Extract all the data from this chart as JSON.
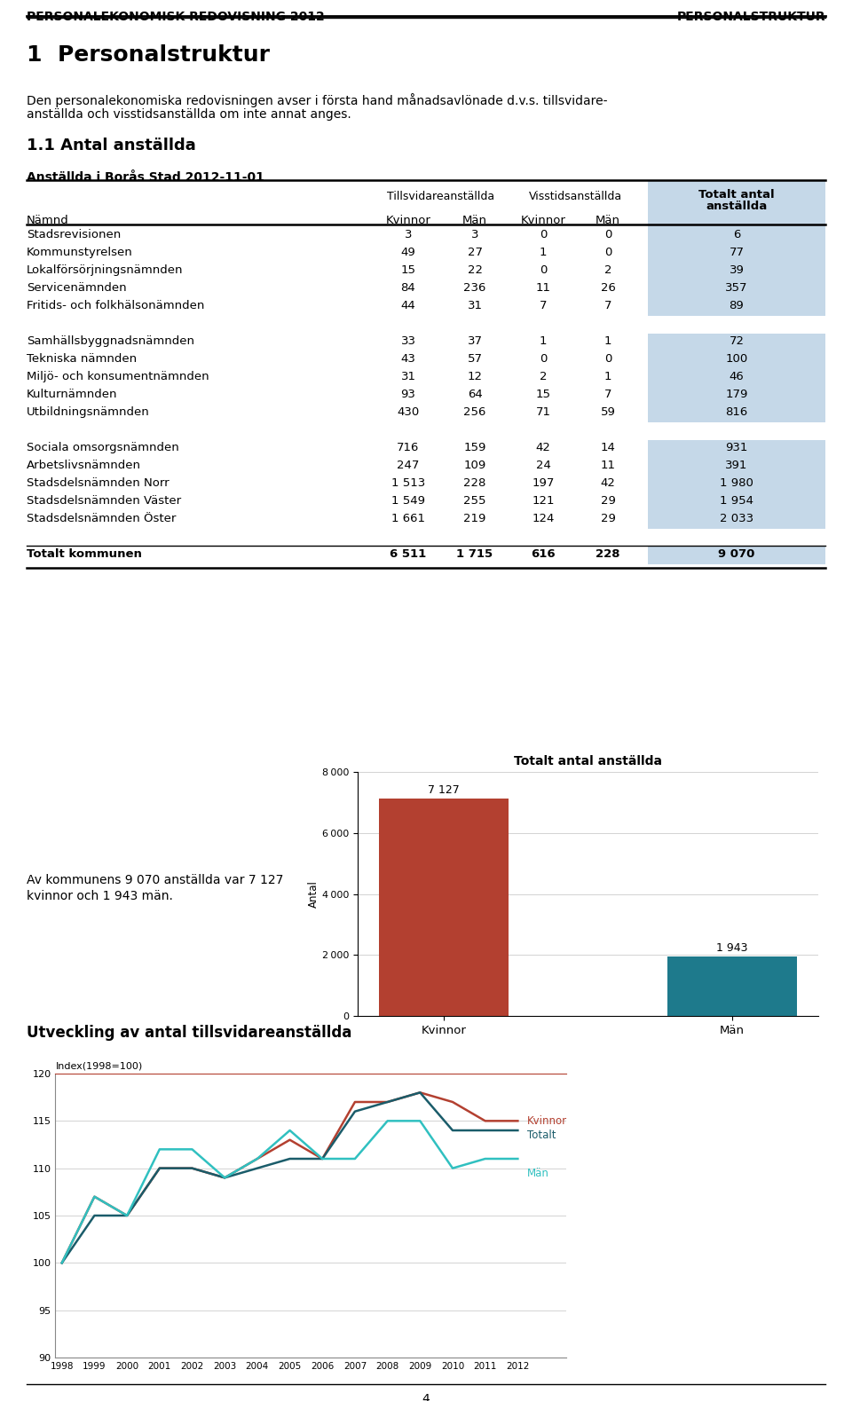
{
  "header_left": "PERSONALEKONOMISK REDOVISNING 2012",
  "header_right": "PERSONALSTRUKTUR",
  "section_title": "1  Personalstruktur",
  "body_text_line1": "Den personalekonomiska redovisningen avser i första hand månadsavlönade d.v.s. tillsvidare-",
  "body_text_line2": "anställda och visstidsanställda om inte annat anges.",
  "subsection_title": "1.1 Antal anställda",
  "table_title": "Anställda i Borås Stad 2012-11-01",
  "col_header1": "Tillsvidareanställda",
  "col_header2": "Visstidsanställda",
  "col_header3_line1": "Totalt antal",
  "col_header3_line2": "anställda",
  "rows": [
    [
      "Stadsrevisionen",
      "3",
      "3",
      "0",
      "0",
      "6"
    ],
    [
      "Kommunstyrelsen",
      "49",
      "27",
      "1",
      "0",
      "77"
    ],
    [
      "Lokalförsörjningsnämnden",
      "15",
      "22",
      "0",
      "2",
      "39"
    ],
    [
      "Servicenämnden",
      "84",
      "236",
      "11",
      "26",
      "357"
    ],
    [
      "Fritids- och folkhälsonämnden",
      "44",
      "31",
      "7",
      "7",
      "89"
    ],
    [
      "",
      "",
      "",
      "",
      "",
      ""
    ],
    [
      "Samhällsbyggnadsnämnden",
      "33",
      "37",
      "1",
      "1",
      "72"
    ],
    [
      "Tekniska nämnden",
      "43",
      "57",
      "0",
      "0",
      "100"
    ],
    [
      "Miljö- och konsumentnämnden",
      "31",
      "12",
      "2",
      "1",
      "46"
    ],
    [
      "Kulturnämnden",
      "93",
      "64",
      "15",
      "7",
      "179"
    ],
    [
      "Utbildningsnämnden",
      "430",
      "256",
      "71",
      "59",
      "816"
    ],
    [
      "",
      "",
      "",
      "",
      "",
      ""
    ],
    [
      "Sociala omsorgsnämnden",
      "716",
      "159",
      "42",
      "14",
      "931"
    ],
    [
      "Arbetslivsnämnden",
      "247",
      "109",
      "24",
      "11",
      "391"
    ],
    [
      "Stadsdelsnämnden Norr",
      "1 513",
      "228",
      "197",
      "42",
      "1 980"
    ],
    [
      "Stadsdelsnämnden Väster",
      "1 549",
      "255",
      "121",
      "29",
      "1 954"
    ],
    [
      "Stadsdelsnämnden Öster",
      "1 661",
      "219",
      "124",
      "29",
      "2 033"
    ],
    [
      "",
      "",
      "",
      "",
      "",
      ""
    ],
    [
      "Totalt kommunen",
      "6 511",
      "1 715",
      "616",
      "228",
      "9 070"
    ]
  ],
  "bar_title": "Totalt antal anställda",
  "bar_ylabel": "Antal",
  "bar_categories": [
    "Kvinnor",
    "Män"
  ],
  "bar_values": [
    7127,
    1943
  ],
  "bar_colors": [
    "#B34030",
    "#1E7A8C"
  ],
  "bar_labels": [
    "7 127",
    "1 943"
  ],
  "side_text_line1": "Av kommunens 9 070 anställda var 7 127",
  "side_text_line2": "kvinnor och 1 943 män.",
  "line_section_title": "Utveckling av antal tillsvidareanställda",
  "line_index_label": "Index(1998=100)",
  "line_years": [
    1998,
    1999,
    2000,
    2001,
    2002,
    2003,
    2004,
    2005,
    2006,
    2007,
    2008,
    2009,
    2010,
    2011,
    2012
  ],
  "line_kvinnor": [
    100,
    107,
    105,
    110,
    110,
    109,
    111,
    113,
    111,
    117,
    117,
    118,
    117,
    115,
    115
  ],
  "line_man": [
    100,
    107,
    105,
    112,
    112,
    109,
    111,
    114,
    111,
    111,
    115,
    115,
    110,
    111,
    111
  ],
  "line_totalt": [
    100,
    105,
    105,
    110,
    110,
    109,
    110,
    111,
    111,
    116,
    117,
    118,
    114,
    114,
    114
  ],
  "line_color_kvinnor": "#B34030",
  "line_color_totalt": "#1A5C6A",
  "line_color_man": "#30C0C0",
  "ylim_line": [
    90,
    120
  ],
  "yticks_line": [
    90,
    95,
    100,
    105,
    110,
    115,
    120
  ],
  "table_header_bg": "#C5D8E8",
  "page_number": "4"
}
